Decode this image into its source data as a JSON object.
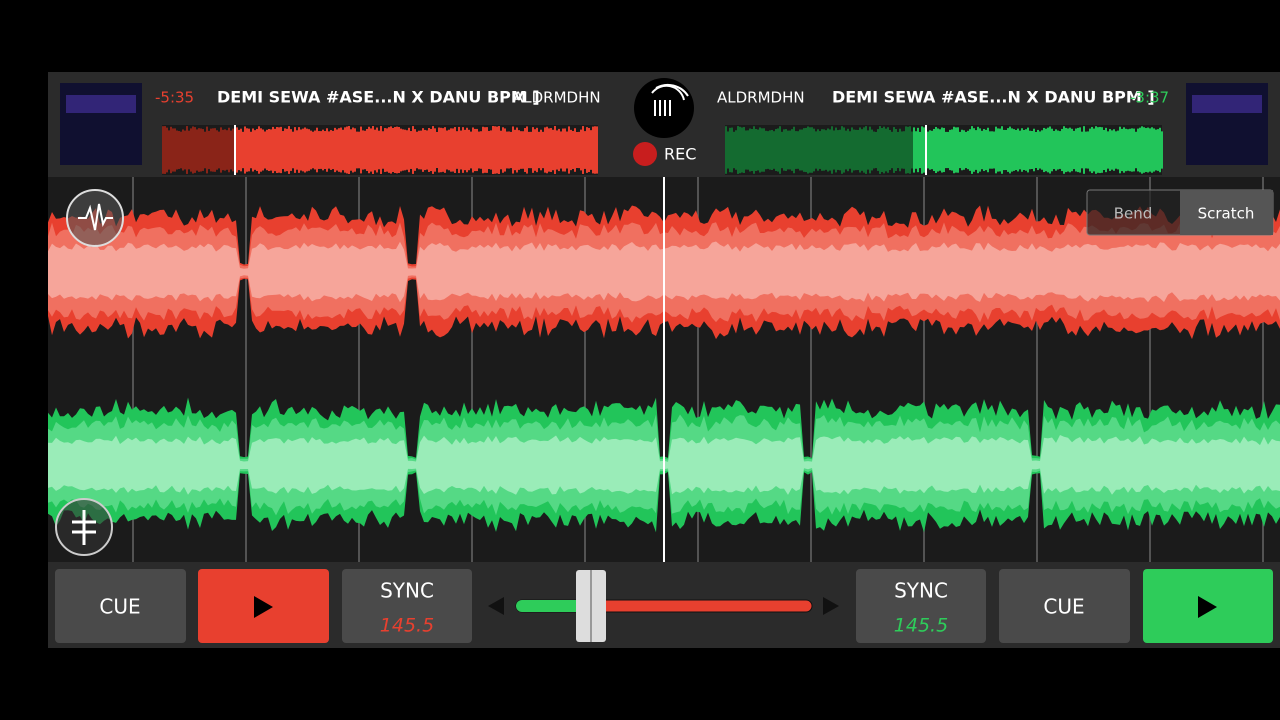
{
  "deck_a": {
    "time": "-5:35",
    "title": "DEMI SEWA #ASE...N X DANU BPM ]",
    "artist": "ALDRMDHN"
  },
  "deck_b": {
    "time": "-3:37",
    "title": "DEMI SEWA #ASE...N X DANU BPM ]",
    "artist": "ALDRMDHN"
  },
  "recorder": {
    "label": "REC"
  },
  "mode_toggle": {
    "options": [
      "Bend",
      "Scratch"
    ]
  },
  "controls": {
    "left": {
      "cue": "CUE",
      "sync": "SYNC",
      "bpm": "145.5"
    },
    "right": {
      "cue": "CUE",
      "sync": "SYNC",
      "bpm": "145.5"
    }
  }
}
